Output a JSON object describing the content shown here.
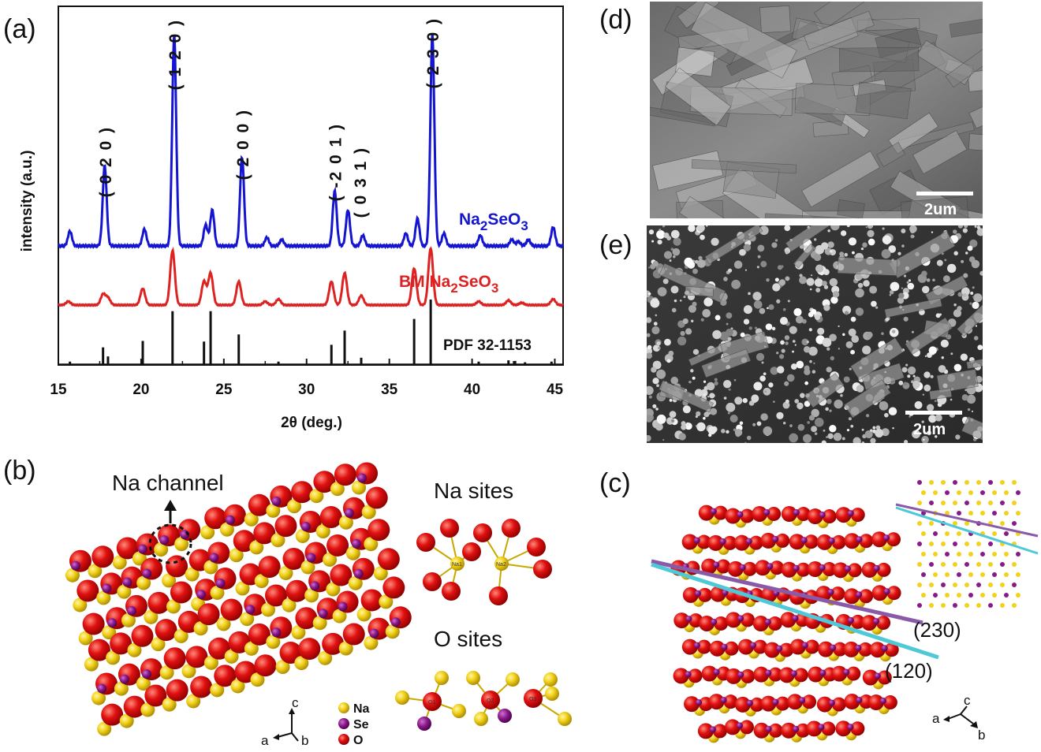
{
  "panels": {
    "a": "(a)",
    "b": "(b)",
    "c": "(c)",
    "d": "(d)",
    "e": "(e)"
  },
  "chart_data": {
    "type": "line",
    "xlabel": "2θ (deg.)",
    "ylabel": "intensity (a.u.)",
    "xlim": [
      15,
      45.5
    ],
    "x_ticks": [
      15,
      20,
      25,
      30,
      35,
      40,
      45
    ],
    "peak_labels": [
      {
        "text": "( 0 2 0 )",
        "x": 17.8
      },
      {
        "text": "( 1 2 0 )",
        "x": 22.0
      },
      {
        "text": "( 2 0 0 )",
        "x": 26.1
      },
      {
        "text": "( -2 0 1 )",
        "x": 31.7
      },
      {
        "text": "( 0 3 1 )",
        "x": 32.5
      },
      {
        "text": "( 2 3 0 )",
        "x": 37.6
      }
    ],
    "series": [
      {
        "name_main": "Na",
        "name_sub": "2",
        "name_rest": "SeO",
        "name_sub2": "3",
        "color": "#1515d0",
        "peaks": [
          [
            15.7,
            0.07
          ],
          [
            17.8,
            0.38
          ],
          [
            20.2,
            0.08
          ],
          [
            22.0,
            1.0
          ],
          [
            23.9,
            0.1
          ],
          [
            24.3,
            0.17
          ],
          [
            26.1,
            0.42
          ],
          [
            27.6,
            0.04
          ],
          [
            28.5,
            0.03
          ],
          [
            31.7,
            0.26
          ],
          [
            32.5,
            0.17
          ],
          [
            33.4,
            0.05
          ],
          [
            36.0,
            0.06
          ],
          [
            36.7,
            0.13
          ],
          [
            37.6,
            1.0
          ],
          [
            38.3,
            0.06
          ],
          [
            40.5,
            0.05
          ],
          [
            42.4,
            0.03
          ],
          [
            42.8,
            0.02
          ],
          [
            43.4,
            0.03
          ],
          [
            44.9,
            0.09
          ]
        ]
      },
      {
        "name_main": "BM Na",
        "name_sub": "2",
        "name_rest": "SeO",
        "name_sub2": "3",
        "color": "#dd2222",
        "peaks": [
          [
            15.6,
            0.03
          ],
          [
            17.7,
            0.09
          ],
          [
            18.0,
            0.06
          ],
          [
            20.1,
            0.14
          ],
          [
            21.9,
            0.46
          ],
          [
            23.8,
            0.2
          ],
          [
            24.2,
            0.27
          ],
          [
            25.9,
            0.2
          ],
          [
            27.5,
            0.03
          ],
          [
            28.3,
            0.05
          ],
          [
            31.5,
            0.2
          ],
          [
            32.3,
            0.27
          ],
          [
            33.3,
            0.08
          ],
          [
            36.5,
            0.31
          ],
          [
            37.5,
            0.48
          ],
          [
            40.4,
            0.03
          ],
          [
            42.2,
            0.04
          ],
          [
            43.0,
            0.02
          ],
          [
            44.9,
            0.05
          ]
        ]
      },
      {
        "name": "PDF 32-1153",
        "color": "#111111",
        "sticks": [
          [
            15.7,
            0.04
          ],
          [
            17.7,
            0.26
          ],
          [
            18.0,
            0.12
          ],
          [
            20.1,
            0.36
          ],
          [
            21.9,
            0.82
          ],
          [
            23.8,
            0.35
          ],
          [
            24.2,
            0.82
          ],
          [
            25.9,
            0.46
          ],
          [
            28.3,
            0.04
          ],
          [
            31.5,
            0.3
          ],
          [
            32.3,
            0.52
          ],
          [
            33.3,
            0.1
          ],
          [
            36.5,
            0.7
          ],
          [
            37.5,
            1.0
          ],
          [
            40.4,
            0.04
          ],
          [
            42.2,
            0.06
          ],
          [
            42.6,
            0.05
          ],
          [
            43.2,
            0.03
          ],
          [
            44.8,
            0.04
          ]
        ]
      }
    ]
  },
  "panel_b": {
    "channel_label": "Na channel",
    "na_sites_title": "Na sites",
    "o_sites_title": "O sites",
    "legend": [
      {
        "label": "Na",
        "color": "#f2d21a"
      },
      {
        "label": "Se",
        "color": "#8a1a8a"
      },
      {
        "label": "O",
        "color": "#e01010"
      }
    ],
    "axes": {
      "c": "c",
      "a": "a",
      "b": "b"
    },
    "site_labels": {
      "na1": "Na1",
      "na2": "Na2",
      "o1": "O1",
      "o2": "O2",
      "o3": "O3"
    }
  },
  "panel_c": {
    "plane_230": "(230)",
    "plane_120": "(120)",
    "axes": {
      "c": "c",
      "a": "a",
      "b": "b"
    }
  },
  "panel_d": {
    "scale_label": "2um"
  },
  "panel_e": {
    "scale_label": "2um"
  }
}
